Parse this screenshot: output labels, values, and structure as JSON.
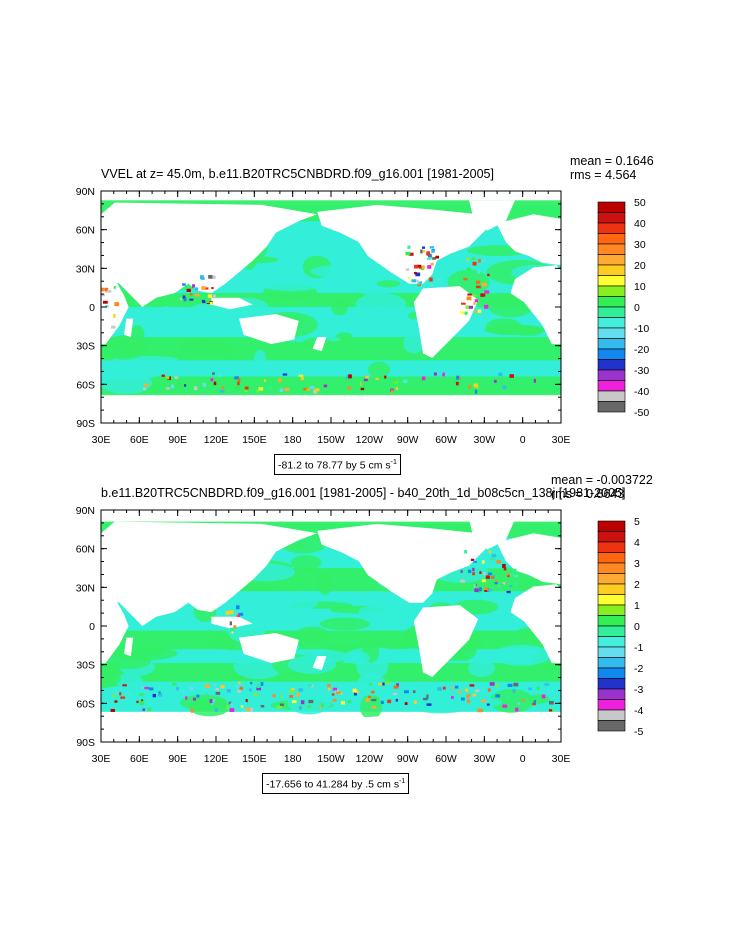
{
  "panel1": {
    "title": "VVEL at z=  45.0m, b.e11.B20TRC5CNBDRD.f09_g16.001 [1981-2005]",
    "mean": "mean = 0.1646",
    "rms": "rms = 4.564",
    "range_text": "-81.2 to 78.77 by 5 cm s",
    "range_unit_exp": "-1",
    "lat_labels": [
      "90N",
      "60N",
      "30N",
      "0",
      "30S",
      "60S",
      "90S"
    ],
    "lon_labels": [
      "30E",
      "60E",
      "90E",
      "120E",
      "150E",
      "180",
      "150W",
      "120W",
      "90W",
      "60W",
      "30W",
      "0",
      "30E"
    ],
    "colorbar_labels": [
      "50",
      "40",
      "30",
      "20",
      "10",
      "0",
      "-10",
      "-20",
      "-30",
      "-40",
      "-50"
    ]
  },
  "panel2": {
    "title": "b.e11.B20TRC5CNBDRD.f09_g16.001 [1981-2005] - b40_20th_1d_b08c5cn_138j [1981-2005]",
    "mean": "mean = -0.003722",
    "rms": "rms = 0.8643",
    "range_text": "-17.656 to 41.284 by .5 cm s",
    "range_unit_exp": "-1",
    "lat_labels": [
      "90N",
      "60N",
      "30N",
      "0",
      "30S",
      "60S",
      "90S"
    ],
    "lon_labels": [
      "30E",
      "60E",
      "90E",
      "120E",
      "150E",
      "180",
      "150W",
      "120W",
      "90W",
      "60W",
      "30W",
      "0",
      "30E"
    ],
    "colorbar_labels": [
      "5",
      "4",
      "3",
      "2",
      "1",
      "0",
      "-1",
      "-2",
      "-3",
      "-4",
      "-5"
    ]
  },
  "colors": {
    "ocean_main": "#33eed8",
    "ocean_green": "#33ee66",
    "land": "#ffffff",
    "palette": [
      "#686868",
      "#c8c8c8",
      "#ee22dd",
      "#9933cc",
      "#2233cc",
      "#1188ee",
      "#33bbee",
      "#66ddee",
      "#44eedd",
      "#33ee99",
      "#33ee55",
      "#88ee22",
      "#ffff33",
      "#ffcc22",
      "#ffaa33",
      "#ff8822",
      "#ff6611",
      "#ee3311",
      "#cc1111",
      "#bb0000"
    ]
  }
}
